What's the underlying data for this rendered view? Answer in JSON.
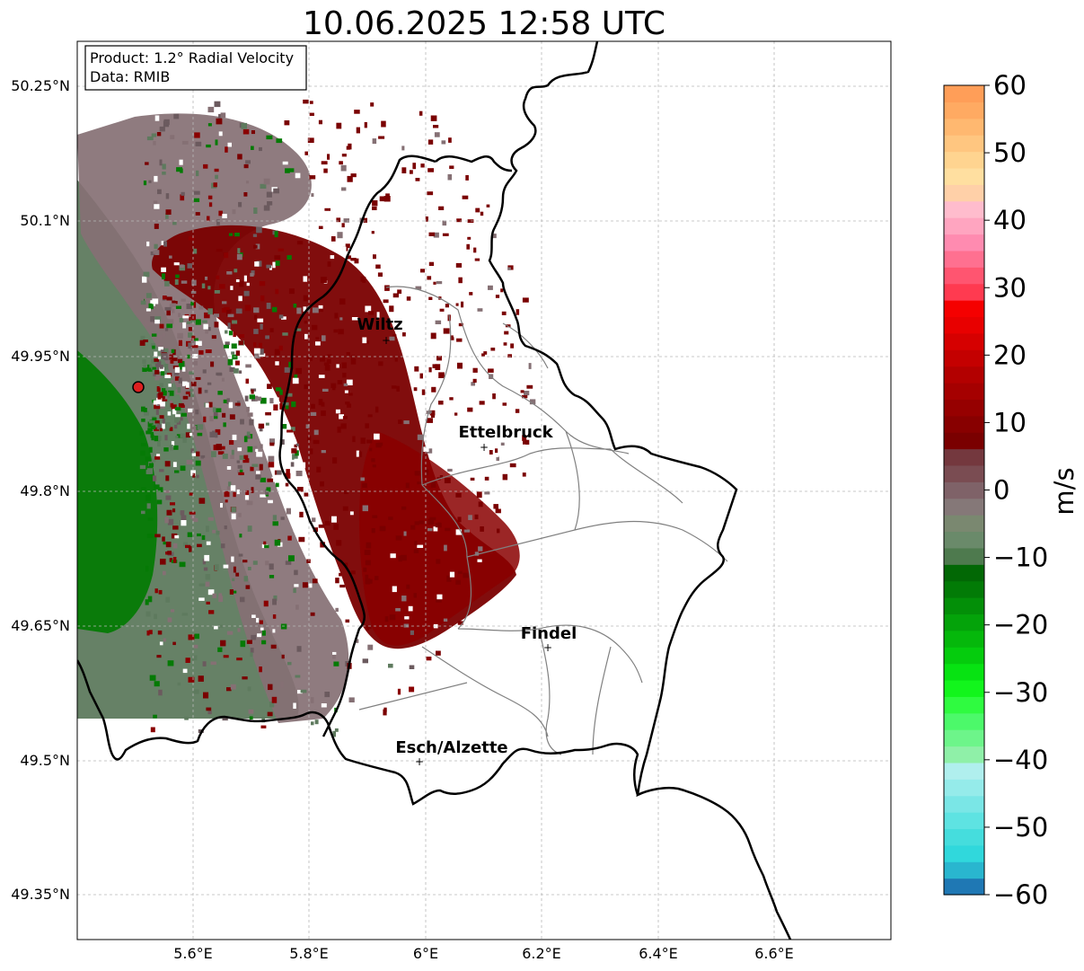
{
  "title": "10.06.2025 12:58 UTC",
  "info_box": {
    "line1": "Product: 1.2° Radial Velocity",
    "line2": "Data: RMIB"
  },
  "lat_ticks": [
    "50.25°N",
    "50.1°N",
    "49.95°N",
    "49.8°N",
    "49.65°N",
    "49.5°N",
    "49.35°N"
  ],
  "lon_ticks": [
    "5.6°E",
    "5.8°E",
    "6°E",
    "6.2°E",
    "6.4°E",
    "6.6°E"
  ],
  "cities": [
    {
      "name": "Wiltz"
    },
    {
      "name": "Ettelbruck"
    },
    {
      "name": "Findel"
    },
    {
      "name": "Esch/Alzette"
    }
  ],
  "colorbar": {
    "unit": "m/s",
    "ticks": [
      "60",
      "50",
      "40",
      "30",
      "20",
      "10",
      "0",
      "−10",
      "−20",
      "−30",
      "−40",
      "−50",
      "−60"
    ],
    "vmin": -60,
    "vmax": 60,
    "colors_bottom_to_top": [
      "#1f78b4",
      "#29b6cf",
      "#30d8dc",
      "#45dddd",
      "#5ee3e2",
      "#7ae6e6",
      "#95ebea",
      "#b0efee",
      "#8ff0a8",
      "#6df58a",
      "#4cf96a",
      "#2ffb40",
      "#12f51c",
      "#07e312",
      "#05cc0d",
      "#05b80b",
      "#04a30a",
      "#038f08",
      "#027b06",
      "#026805",
      "#4e7a4e",
      "#6a8a6a",
      "#7a8870",
      "#857878",
      "#7f6268",
      "#7a4c52",
      "#74383e",
      "#7a0000",
      "#880000",
      "#960000",
      "#a50000",
      "#b30000",
      "#c40000",
      "#d60000",
      "#e80000",
      "#f50000",
      "#ff3a50",
      "#ff5570",
      "#ff7090",
      "#ff8bb0",
      "#ffa5c0",
      "#ffbccd",
      "#ffd0a8",
      "#ffdfa0",
      "#ffd490",
      "#ffc680",
      "#ffb870",
      "#ffaa62",
      "#ff9e58"
    ]
  },
  "radar": {
    "site_marker_color": "#dd2020"
  }
}
